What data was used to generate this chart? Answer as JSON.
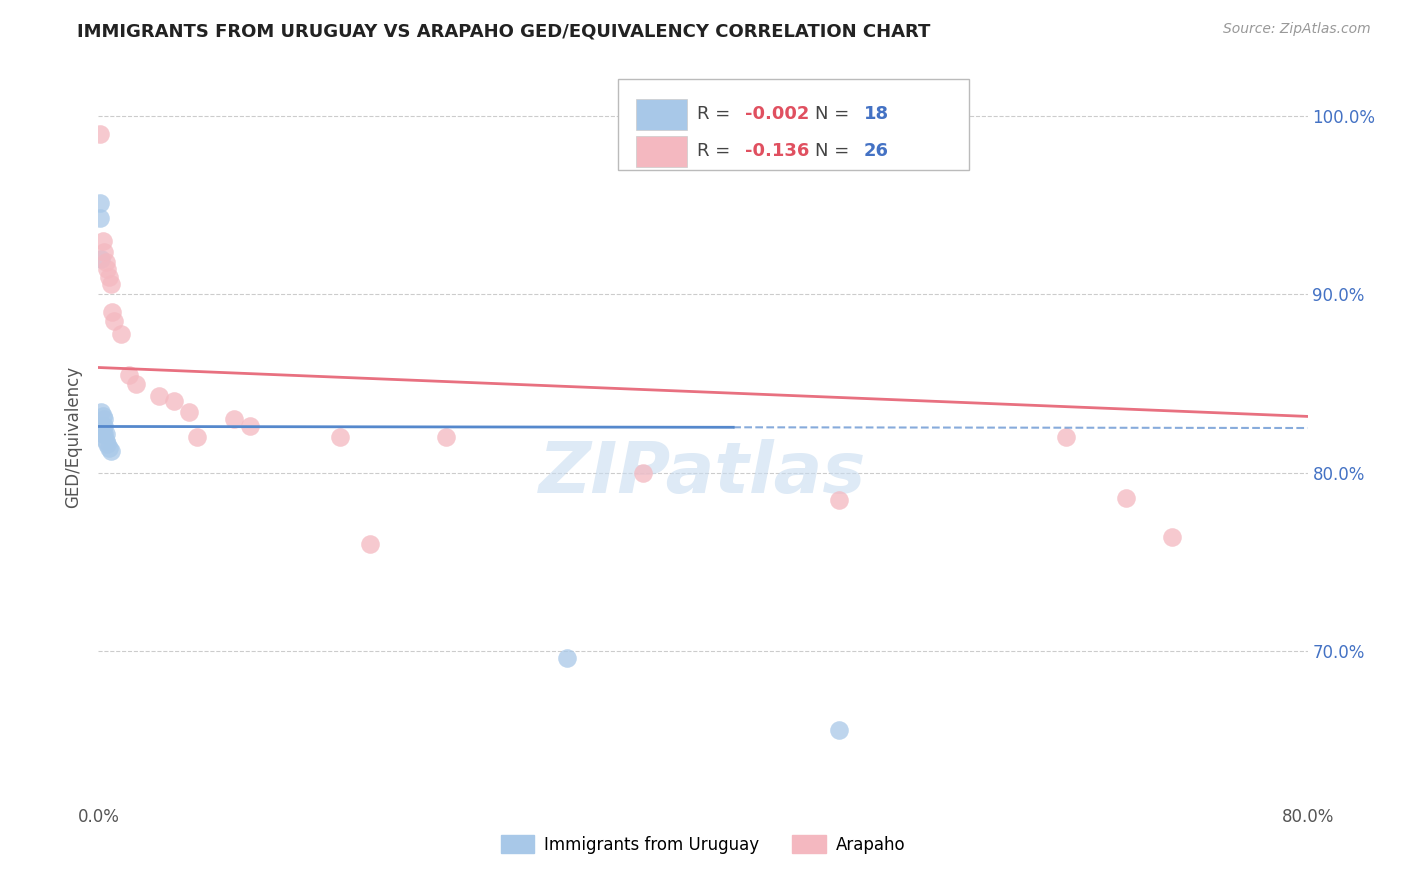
{
  "title": "IMMIGRANTS FROM URUGUAY VS ARAPAHO GED/EQUIVALENCY CORRELATION CHART",
  "source": "Source: ZipAtlas.com",
  "ylabel": "GED/Equivalency",
  "xlim": [
    0.0,
    0.8
  ],
  "ylim": [
    0.615,
    1.025
  ],
  "xtick_vals": [
    0.0,
    0.1,
    0.2,
    0.3,
    0.4,
    0.5,
    0.6,
    0.7,
    0.8
  ],
  "xtick_labels": [
    "0.0%",
    "",
    "",
    "",
    "",
    "",
    "",
    "",
    "80.0%"
  ],
  "ytick_positions": [
    0.7,
    0.8,
    0.9,
    1.0
  ],
  "ytick_labels": [
    "70.0%",
    "80.0%",
    "90.0%",
    "100.0%"
  ],
  "blue_color": "#A8C8E8",
  "pink_color": "#F4B8C0",
  "blue_line_color": "#5588CC",
  "pink_line_color": "#E87080",
  "grid_color": "#CCCCCC",
  "background_color": "#FFFFFF",
  "watermark": "ZIPAtlas",
  "r_blue": "-0.002",
  "n_blue": "18",
  "r_pink": "-0.136",
  "n_pink": "26",
  "blue_x": [
    0.001,
    0.001,
    0.002,
    0.002,
    0.002,
    0.003,
    0.003,
    0.003,
    0.004,
    0.004,
    0.004,
    0.005,
    0.005,
    0.006,
    0.007,
    0.008,
    0.31,
    0.49
  ],
  "blue_y": [
    0.951,
    0.943,
    0.92,
    0.834,
    0.826,
    0.832,
    0.826,
    0.822,
    0.83,
    0.826,
    0.822,
    0.822,
    0.818,
    0.816,
    0.814,
    0.812,
    0.696,
    0.656
  ],
  "pink_x": [
    0.001,
    0.003,
    0.004,
    0.005,
    0.006,
    0.007,
    0.008,
    0.009,
    0.01,
    0.015,
    0.02,
    0.025,
    0.04,
    0.05,
    0.06,
    0.065,
    0.09,
    0.1,
    0.16,
    0.18,
    0.23,
    0.36,
    0.49,
    0.64,
    0.68,
    0.71
  ],
  "pink_y": [
    0.99,
    0.93,
    0.924,
    0.918,
    0.914,
    0.91,
    0.906,
    0.89,
    0.885,
    0.878,
    0.855,
    0.85,
    0.843,
    0.84,
    0.834,
    0.82,
    0.83,
    0.826,
    0.82,
    0.76,
    0.82,
    0.8,
    0.785,
    0.82,
    0.786,
    0.764
  ]
}
